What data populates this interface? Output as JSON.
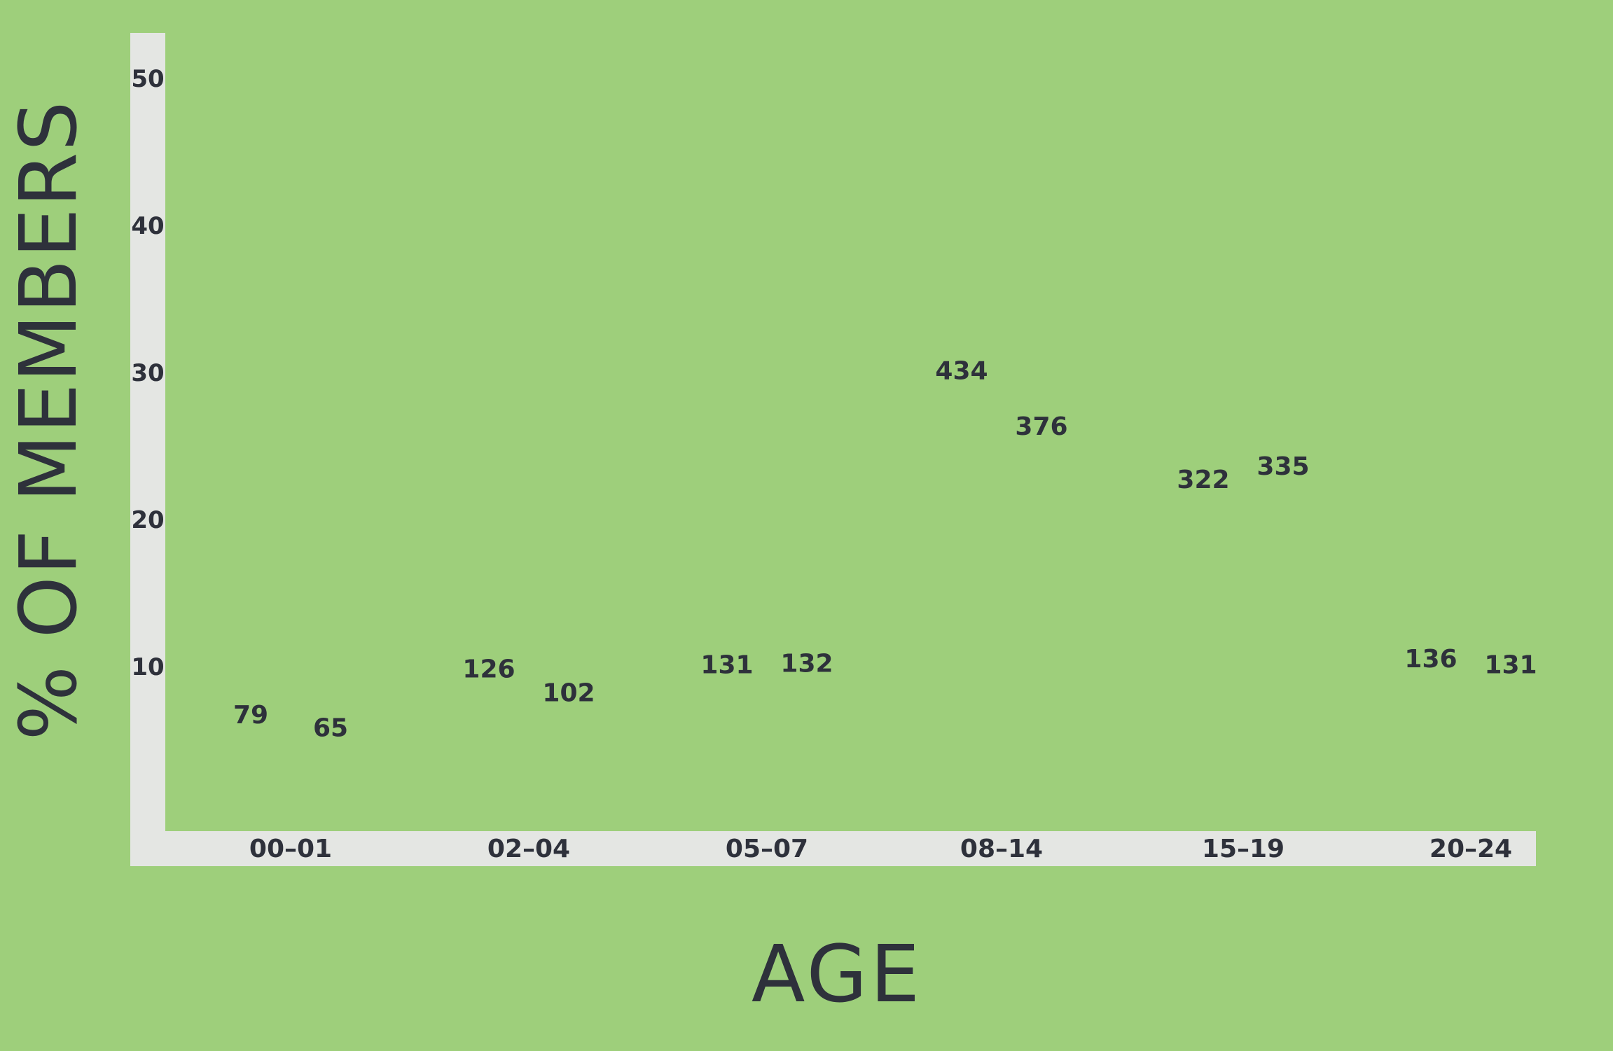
{
  "chart_data": {
    "type": "bar",
    "title": "",
    "xlabel": "AGE",
    "ylabel": "% OF MEMBERS",
    "categories": [
      "00–01",
      "02–04",
      "05–07",
      "08–14",
      "15–19",
      "20–24"
    ],
    "yticks": [
      "10",
      "20",
      "30",
      "40",
      "50"
    ],
    "ylim": [
      0,
      55
    ],
    "series": [
      {
        "icon": "male-person-icon",
        "values": [
          5.2,
          8.3,
          8.6,
          28.6,
          21.2,
          9.0
        ],
        "labels": [
          "79",
          "126",
          "131",
          "434",
          "322",
          "136"
        ]
      },
      {
        "icon": "female-person-icon",
        "values": [
          4.3,
          6.7,
          8.7,
          24.8,
          22.1,
          8.6
        ],
        "labels": [
          "65",
          "102",
          "132",
          "376",
          "335",
          "131"
        ]
      }
    ],
    "grid": false,
    "legend": "none"
  },
  "colors": {
    "background": "#9ecf7b",
    "axis": "#e4e6e3",
    "icon": "#2e313b",
    "text": "#2e313b"
  }
}
